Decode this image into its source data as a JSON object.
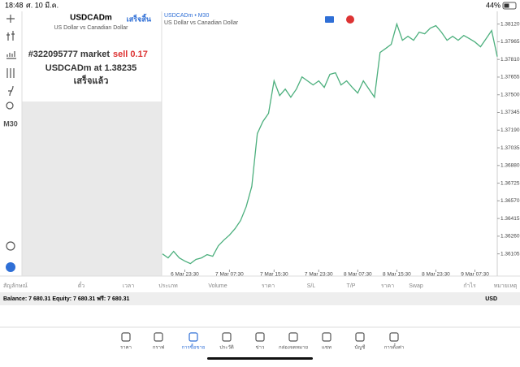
{
  "status_bar": {
    "time": "18:48",
    "date": "ศ. 10 มี.ค.",
    "battery": "44%"
  },
  "toolbar": {
    "timeframe": "M30"
  },
  "order_panel": {
    "symbol": "USDCADm",
    "description": "US Dollar vs Canadian Dollar",
    "done_button": "เสร็จสิ้น",
    "order_text": "#322095777 market",
    "order_side": "sell 0.17",
    "order_price": "USDCADm at 1.38235",
    "status": "เสร็จแล้ว"
  },
  "chart_data": {
    "type": "line",
    "title": "USDCADm • M30",
    "subtitle": "US Dollar vs Canadian Dollar",
    "color": "#4caf7d",
    "values": [
      1.36105,
      1.3607,
      1.36127,
      1.3607,
      1.36041,
      1.3602,
      1.36056,
      1.3607,
      1.36098,
      1.36084,
      1.36176,
      1.36226,
      1.36269,
      1.36326,
      1.36397,
      1.36518,
      1.36696,
      1.37159,
      1.37266,
      1.37337,
      1.37622,
      1.37493,
      1.3755,
      1.37479,
      1.3755,
      1.37657,
      1.37622,
      1.37586,
      1.37622,
      1.37565,
      1.37679,
      1.37693,
      1.37586,
      1.37622,
      1.37565,
      1.37515,
      1.37622,
      1.3755,
      1.37479,
      1.37871,
      1.37906,
      1.37942,
      1.3812,
      1.37978,
      1.38013,
      1.37978,
      1.38049,
      1.38035,
      1.38084,
      1.38106,
      1.38049,
      1.37978,
      1.38013,
      1.37978,
      1.3802,
      1.37992,
      1.37963,
      1.37921,
      1.37992,
      1.38063,
      1.37835
    ],
    "xlim": [
      0,
      60
    ],
    "xticks": [
      {
        "value": 4,
        "label": "6 Mar 23:30"
      },
      {
        "value": 12,
        "label": "7 Mar 07:30"
      },
      {
        "value": 20,
        "label": "7 Mar 15:30"
      },
      {
        "value": 28,
        "label": "7 Mar 23:30"
      },
      {
        "value": 35,
        "label": "8 Mar 07:30"
      },
      {
        "value": 42,
        "label": "8 Mar 15:30"
      },
      {
        "value": 49,
        "label": "8 Mar 23:30"
      },
      {
        "value": 56,
        "label": "9 Mar 07:30"
      }
    ],
    "ylim": [
      1.3601,
      1.3821
    ],
    "yticks": [
      {
        "value": 1.3812,
        "label": "1.38120"
      },
      {
        "value": 1.37965,
        "label": "1.37965"
      },
      {
        "value": 1.3781,
        "label": "1.37810"
      },
      {
        "value": 1.37655,
        "label": "1.37655"
      },
      {
        "value": 1.375,
        "label": "1.37500"
      },
      {
        "value": 1.37345,
        "label": "1.37345"
      },
      {
        "value": 1.3719,
        "label": "1.37190"
      },
      {
        "value": 1.37035,
        "label": "1.37035"
      },
      {
        "value": 1.3688,
        "label": "1.36880"
      },
      {
        "value": 1.36725,
        "label": "1.36725"
      },
      {
        "value": 1.3657,
        "label": "1.36570"
      },
      {
        "value": 1.36415,
        "label": "1.36415"
      },
      {
        "value": 1.3626,
        "label": "1.36260"
      },
      {
        "value": 1.36105,
        "label": "1.36105"
      }
    ],
    "grid": false
  },
  "table": {
    "headers": [
      "สัญลักษณ์",
      "ตั๋ว",
      "เวลา",
      "ประเภท",
      "Volume",
      "ราคา",
      "S/L",
      "T/P",
      "ราคา",
      "Swap",
      "กำไร",
      "หมายเหตุ"
    ],
    "balance": "Balance: 7 680.31 Equity: 7 680.31 ฟรี: 7 680.31",
    "currency": "USD"
  },
  "nav": [
    "ราคา",
    "กราฟ",
    "การซื้อขาย",
    "ประวัติ",
    "ข่าว",
    "กล่องจดหมาย",
    "แชท",
    "บัญชี",
    "การตั้งค่า"
  ]
}
